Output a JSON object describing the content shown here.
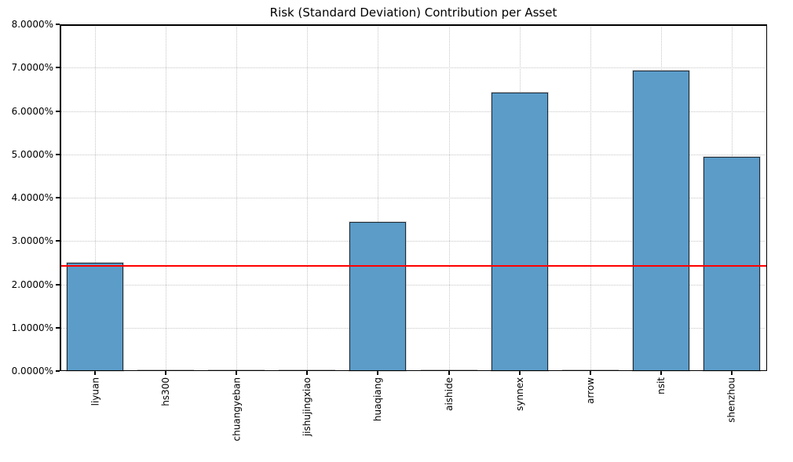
{
  "chart_data": {
    "type": "bar",
    "title": "Risk (Standard Deviation) Contribution per Asset",
    "categories": [
      "liyuan",
      "hs300",
      "chuangyeban",
      "jishujingxiao",
      "huaqiang",
      "aishide",
      "synnex",
      "arrow",
      "nsit",
      "shenzhou"
    ],
    "values": [
      2.5,
      0.0,
      0.0,
      0.0,
      3.43,
      0.0,
      6.42,
      0.0,
      6.93,
      4.95
    ],
    "unit": "%",
    "xlabel": "",
    "ylabel": "",
    "ylim": [
      0,
      8
    ],
    "ytick_step": 1,
    "ytick_labels": [
      "0.0000%",
      "1.0000%",
      "2.0000%",
      "3.0000%",
      "4.0000%",
      "5.0000%",
      "6.0000%",
      "7.0000%",
      "8.0000%"
    ],
    "reference_line": {
      "value": 2.42,
      "color": "#ff0000"
    },
    "grid": "dotted",
    "legend": "none",
    "colors": {
      "bar_fill": "#5b9cc9",
      "bar_edge": "#1e2a35",
      "zero_bar": "#bfbfbf",
      "grid": "#c6c6c6",
      "background": "#ffffff",
      "text": "#000000"
    }
  }
}
